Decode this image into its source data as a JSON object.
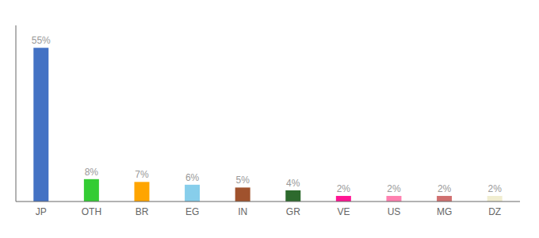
{
  "chart_data": {
    "type": "bar",
    "categories": [
      "JP",
      "OTH",
      "BR",
      "EG",
      "IN",
      "GR",
      "VE",
      "US",
      "MG",
      "DZ"
    ],
    "values": [
      55,
      8,
      7,
      6,
      5,
      4,
      2,
      2,
      2,
      2
    ],
    "value_labels": [
      "55%",
      "8%",
      "7%",
      "6%",
      "5%",
      "4%",
      "2%",
      "2%",
      "2%",
      "2%"
    ],
    "colors": [
      "#4472C4",
      "#33CC33",
      "#FFA500",
      "#87CEEB",
      "#A0522D",
      "#2D6A2D",
      "#FF1493",
      "#FF80B0",
      "#D07070",
      "#F0EDD0"
    ],
    "ylim": [
      0,
      63
    ],
    "data_labels": true,
    "tick_labels": "x",
    "grid": false
  }
}
